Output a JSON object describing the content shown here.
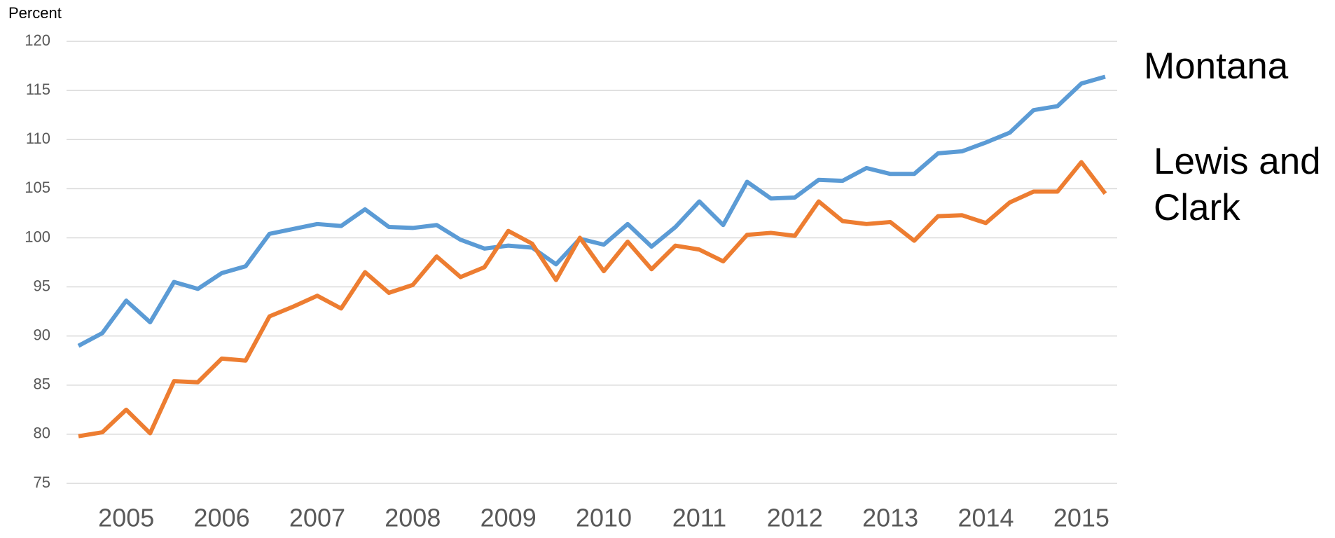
{
  "chart_data": {
    "type": "line",
    "y_label": "Percent",
    "categories": [
      null,
      null,
      "2005",
      null,
      null,
      null,
      "2006",
      null,
      null,
      null,
      "2007",
      null,
      null,
      null,
      "2008",
      null,
      null,
      null,
      "2009",
      null,
      null,
      null,
      "2010",
      null,
      null,
      null,
      "2011",
      null,
      null,
      null,
      "2012",
      null,
      null,
      null,
      "2013",
      null,
      null,
      null,
      "2014",
      null,
      null,
      null,
      "2015",
      null
    ],
    "series": [
      {
        "name": "Montana",
        "color": "#5b9bd5",
        "values": [
          89.0,
          90.3,
          93.6,
          91.4,
          95.5,
          94.8,
          96.4,
          97.1,
          100.4,
          100.9,
          101.4,
          101.2,
          102.9,
          101.1,
          101.0,
          101.3,
          99.8,
          98.9,
          99.2,
          99.0,
          97.3,
          99.9,
          99.3,
          101.4,
          99.1,
          101.1,
          103.7,
          101.3,
          105.7,
          104.0,
          104.1,
          105.9,
          105.8,
          107.1,
          106.5,
          106.5,
          108.6,
          108.8,
          109.7,
          110.7,
          113.0,
          113.4,
          115.7,
          116.4
        ]
      },
      {
        "name": "Lewis and Clark",
        "color": "#ed7d31",
        "values": [
          79.8,
          80.2,
          82.5,
          80.1,
          85.4,
          85.3,
          87.7,
          87.5,
          92.0,
          93.0,
          94.1,
          92.8,
          96.5,
          94.4,
          95.2,
          98.1,
          96.0,
          97.0,
          100.7,
          99.4,
          95.7,
          100.0,
          96.6,
          99.6,
          96.8,
          99.2,
          98.8,
          97.6,
          100.3,
          100.5,
          100.2,
          103.7,
          101.7,
          101.4,
          101.6,
          99.7,
          102.2,
          102.3,
          101.5,
          103.6,
          104.7,
          104.7,
          107.7,
          104.5
        ]
      }
    ],
    "ylim": [
      75,
      120
    ],
    "yticks": [
      75,
      80,
      85,
      90,
      95,
      100,
      105,
      110,
      115,
      120
    ],
    "grid": true
  }
}
